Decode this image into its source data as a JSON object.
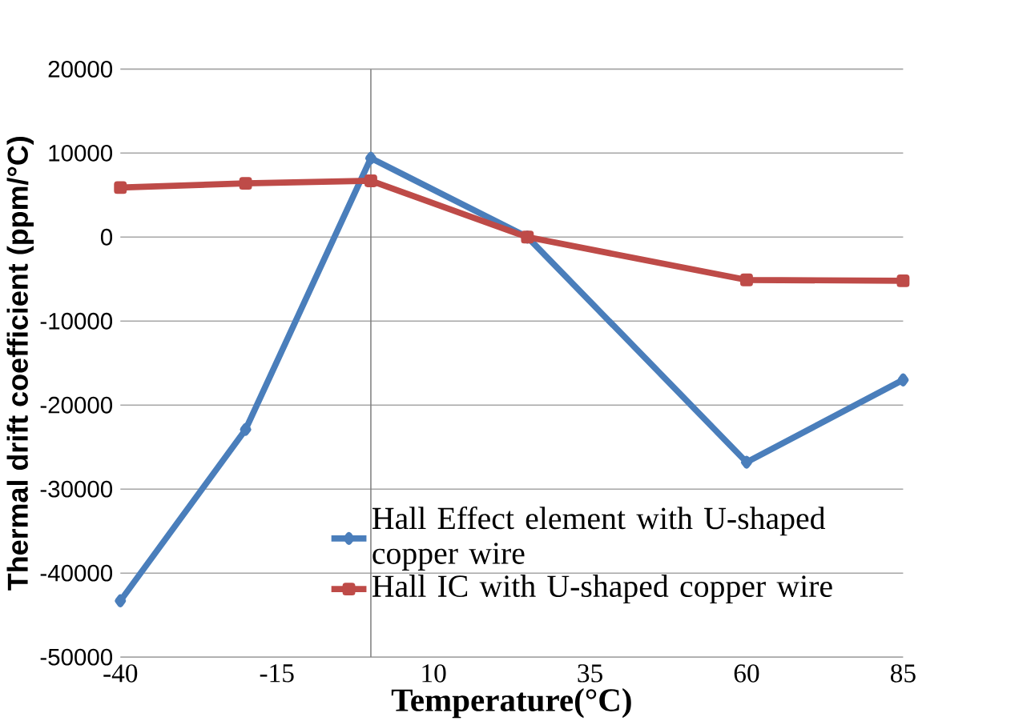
{
  "chart_data": {
    "type": "line",
    "xlabel": "Temperature(°C)",
    "ylabel": "Thermal drift coefficient (ppm/°C)",
    "x": [
      -40,
      -20,
      0,
      25,
      60,
      85
    ],
    "series": [
      {
        "name": "Hall Effect element with U-shaped copper wire",
        "color": "#4a7ebb",
        "marker": "diamond",
        "values": [
          -43300,
          -22900,
          9400,
          0,
          -26800,
          -17000
        ]
      },
      {
        "name": "Hall IC with U-shaped copper wire",
        "color": "#be4b48",
        "marker": "square",
        "values": [
          5900,
          6400,
          6700,
          0,
          -5100,
          -5200
        ]
      }
    ],
    "xlim": [
      -40,
      85
    ],
    "xticks": [
      -40,
      -15,
      10,
      35,
      60,
      85
    ],
    "ylim": [
      -50000,
      20000
    ],
    "yticks": [
      -50000,
      -40000,
      -30000,
      -20000,
      -10000,
      0,
      10000,
      20000
    ],
    "grid": "y",
    "legend": "bottom right",
    "line_style": "solid"
  }
}
